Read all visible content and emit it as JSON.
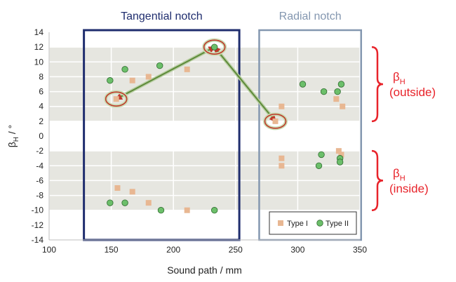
{
  "chart_data": {
    "type": "scatter",
    "xlabel": "Sound path / mm",
    "ylabel_main": "β",
    "ylabel_sub": "H",
    "ylabel_unit": " / °",
    "xlim": [
      100,
      350
    ],
    "ylim": [
      -14,
      14
    ],
    "x_ticks": [
      100,
      150,
      200,
      250,
      300,
      350
    ],
    "y_ticks": [
      -14,
      -12,
      -10,
      -8,
      -6,
      -4,
      -2,
      0,
      2,
      4,
      6,
      8,
      10,
      12,
      14
    ],
    "bands": [
      {
        "from": 2,
        "to": 12
      },
      {
        "from": -10,
        "to": -2
      }
    ],
    "regions": [
      {
        "name": "Tangential notch",
        "x_from": 128,
        "x_to": 253,
        "color": "#1f2d6e"
      },
      {
        "name": "Radial notch",
        "x_from": 269,
        "x_to": 351,
        "color": "#8497b0"
      }
    ],
    "series": [
      {
        "name": "Type I",
        "marker": "square",
        "color": "#e8b792",
        "points": [
          [
            154,
            5
          ],
          [
            167,
            7.5
          ],
          [
            180,
            8
          ],
          [
            211,
            9
          ],
          [
            155,
            -7
          ],
          [
            167,
            -7.5
          ],
          [
            180,
            -9
          ],
          [
            211,
            -10
          ],
          [
            282,
            2
          ],
          [
            287,
            4
          ],
          [
            287,
            -3
          ],
          [
            287,
            -4
          ],
          [
            331,
            5
          ],
          [
            333,
            -2
          ],
          [
            335,
            -2.5
          ],
          [
            336,
            4
          ]
        ]
      },
      {
        "name": "Type II",
        "marker": "circle",
        "color": "#6cbf6a",
        "points": [
          [
            149,
            7.5
          ],
          [
            161,
            9
          ],
          [
            189,
            9.5
          ],
          [
            233,
            12
          ],
          [
            149,
            -9
          ],
          [
            161,
            -9
          ],
          [
            190,
            -10
          ],
          [
            233,
            -10
          ],
          [
            304,
            7
          ],
          [
            321,
            6
          ],
          [
            332,
            6
          ],
          [
            335,
            7
          ],
          [
            319,
            -2.5
          ],
          [
            317,
            -4
          ],
          [
            334,
            -3
          ],
          [
            334,
            -3.5
          ]
        ]
      }
    ],
    "highlighted_points": [
      [
        154,
        5
      ],
      [
        233,
        12
      ],
      [
        282,
        2
      ]
    ],
    "arrows": [
      {
        "from": [
          154,
          5
        ],
        "to": [
          233,
          12
        ]
      },
      {
        "from": [
          233,
          12
        ],
        "to": [
          282,
          2
        ]
      }
    ],
    "side_labels": [
      {
        "symbol": "β",
        "sub": "H",
        "text": "(outside)"
      },
      {
        "symbol": "β",
        "sub": "H",
        "text": "(inside)"
      }
    ],
    "legend_position": "bottom-right",
    "colors": {
      "band": "#e6e6e0",
      "gridline": "#ffffff",
      "arrow": "#5e8a3a",
      "highlight_ring": "#c0392b",
      "bracket": "#e8232a"
    }
  }
}
